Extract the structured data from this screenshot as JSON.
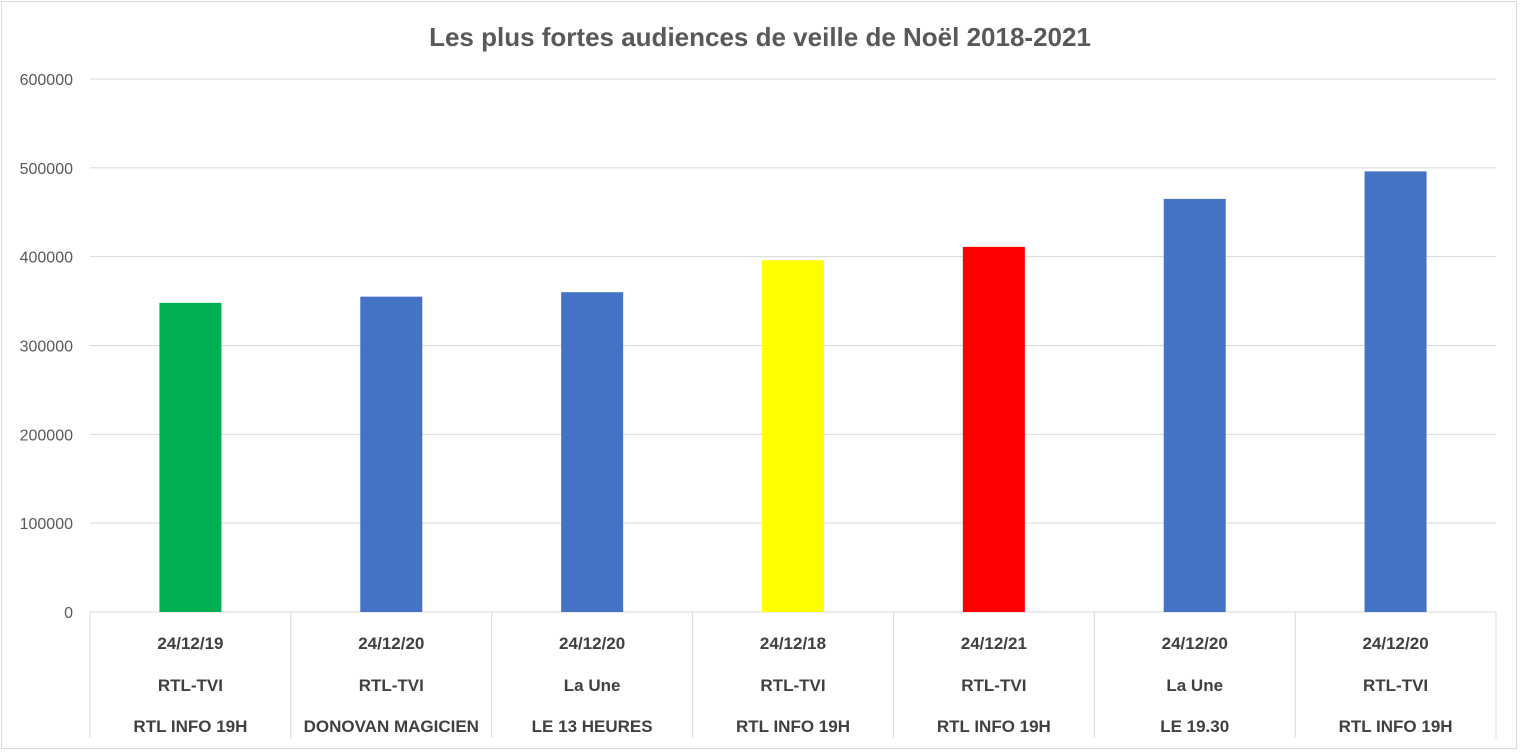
{
  "chart_data": {
    "type": "bar",
    "title": "Les plus fortes audiences de veille de Noël 2018-2021",
    "ylim": [
      0,
      600000
    ],
    "yticks": [
      "0",
      "100000",
      "200000",
      "300000",
      "400000",
      "500000",
      "600000"
    ],
    "grid": true,
    "categories": [
      {
        "date": "24/12/19",
        "channel": "RTL-TVI",
        "program": "RTL INFO 19H"
      },
      {
        "date": "24/12/20",
        "channel": "RTL-TVI",
        "program": "DONOVAN MAGICIEN"
      },
      {
        "date": "24/12/20",
        "channel": "La Une",
        "program": "LE 13 HEURES"
      },
      {
        "date": "24/12/18",
        "channel": "RTL-TVI",
        "program": "RTL INFO 19H"
      },
      {
        "date": "24/12/21",
        "channel": "RTL-TVI",
        "program": "RTL INFO 19H"
      },
      {
        "date": "24/12/20",
        "channel": "La Une",
        "program": "LE 19.30"
      },
      {
        "date": "24/12/20",
        "channel": "RTL-TVI",
        "program": "RTL INFO 19H"
      }
    ],
    "values": [
      348000,
      355000,
      360000,
      396000,
      411000,
      465000,
      496000
    ],
    "colors": [
      "#00b050",
      "#4472c4",
      "#4472c4",
      "#ffff00",
      "#ff0000",
      "#4472c4",
      "#4472c4"
    ]
  }
}
